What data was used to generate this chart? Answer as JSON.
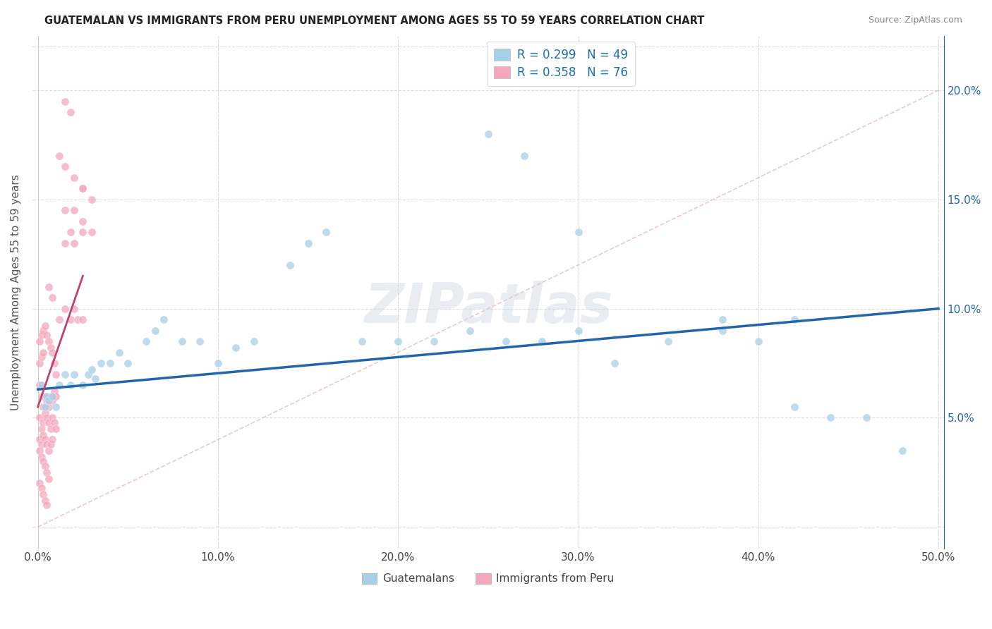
{
  "title": "GUATEMALAN VS IMMIGRANTS FROM PERU UNEMPLOYMENT AMONG AGES 55 TO 59 YEARS CORRELATION CHART",
  "source": "Source: ZipAtlas.com",
  "ylabel": "Unemployment Among Ages 55 to 59 years",
  "xlim": [
    -0.003,
    0.503
  ],
  "ylim": [
    -0.01,
    0.225
  ],
  "xticks": [
    0.0,
    0.1,
    0.2,
    0.3,
    0.4,
    0.5
  ],
  "xticklabels": [
    "0.0%",
    "10.0%",
    "20.0%",
    "30.0%",
    "40.0%",
    "50.0%"
  ],
  "yticks_right": [
    0.05,
    0.1,
    0.15,
    0.2
  ],
  "yticklabels_right": [
    "5.0%",
    "10.0%",
    "15.0%",
    "20.0%"
  ],
  "blue_color": "#a8cfe8",
  "pink_color": "#f4a7bb",
  "blue_line_color": "#2166ac",
  "pink_line_color": "#e07090",
  "diag_line_color": "#e8b0bf",
  "watermark": "ZIPatlas",
  "background_color": "#ffffff",
  "grid_color": "#dddddd",
  "legend_r1": "R = 0.299",
  "legend_n1": "N = 49",
  "legend_r2": "R = 0.358",
  "legend_n2": "N = 76",
  "legend_text_color": "#1a6eb5",
  "blue_scatter_x": [
    0.002,
    0.004,
    0.005,
    0.006,
    0.008,
    0.01,
    0.012,
    0.015,
    0.018,
    0.02,
    0.025,
    0.028,
    0.03,
    0.032,
    0.035,
    0.04,
    0.045,
    0.05,
    0.06,
    0.065,
    0.07,
    0.08,
    0.09,
    0.1,
    0.11,
    0.12,
    0.14,
    0.15,
    0.16,
    0.18,
    0.2,
    0.22,
    0.24,
    0.26,
    0.28,
    0.3,
    0.32,
    0.35,
    0.38,
    0.4,
    0.42,
    0.44,
    0.46,
    0.48,
    0.25,
    0.27,
    0.3,
    0.38,
    0.42
  ],
  "blue_scatter_y": [
    0.065,
    0.055,
    0.06,
    0.058,
    0.06,
    0.055,
    0.065,
    0.07,
    0.065,
    0.07,
    0.065,
    0.07,
    0.072,
    0.068,
    0.075,
    0.075,
    0.08,
    0.075,
    0.085,
    0.09,
    0.095,
    0.085,
    0.085,
    0.075,
    0.082,
    0.085,
    0.12,
    0.13,
    0.135,
    0.085,
    0.085,
    0.085,
    0.09,
    0.085,
    0.085,
    0.09,
    0.075,
    0.085,
    0.09,
    0.085,
    0.055,
    0.05,
    0.05,
    0.035,
    0.18,
    0.17,
    0.135,
    0.095,
    0.095
  ],
  "pink_scatter_x": [
    0.001,
    0.002,
    0.003,
    0.004,
    0.005,
    0.006,
    0.007,
    0.008,
    0.009,
    0.01,
    0.001,
    0.002,
    0.003,
    0.004,
    0.005,
    0.006,
    0.007,
    0.008,
    0.009,
    0.01,
    0.001,
    0.002,
    0.003,
    0.004,
    0.005,
    0.006,
    0.007,
    0.008,
    0.001,
    0.002,
    0.003,
    0.004,
    0.005,
    0.006,
    0.001,
    0.002,
    0.003,
    0.004,
    0.005,
    0.001,
    0.002,
    0.003,
    0.001,
    0.002,
    0.003,
    0.004,
    0.005,
    0.006,
    0.007,
    0.008,
    0.009,
    0.01,
    0.012,
    0.015,
    0.018,
    0.02,
    0.022,
    0.025,
    0.015,
    0.018,
    0.02,
    0.025,
    0.015,
    0.02,
    0.025,
    0.03,
    0.025,
    0.03,
    0.02,
    0.025,
    0.015,
    0.018,
    0.012,
    0.015,
    0.006,
    0.008
  ],
  "pink_scatter_y": [
    0.065,
    0.06,
    0.055,
    0.06,
    0.058,
    0.055,
    0.06,
    0.058,
    0.062,
    0.06,
    0.05,
    0.045,
    0.048,
    0.052,
    0.05,
    0.048,
    0.045,
    0.05,
    0.048,
    0.045,
    0.04,
    0.038,
    0.042,
    0.04,
    0.038,
    0.035,
    0.038,
    0.04,
    0.035,
    0.032,
    0.03,
    0.028,
    0.025,
    0.022,
    0.02,
    0.018,
    0.015,
    0.012,
    0.01,
    0.075,
    0.078,
    0.08,
    0.085,
    0.088,
    0.09,
    0.092,
    0.088,
    0.085,
    0.082,
    0.08,
    0.075,
    0.07,
    0.095,
    0.1,
    0.095,
    0.1,
    0.095,
    0.095,
    0.13,
    0.135,
    0.13,
    0.135,
    0.145,
    0.145,
    0.14,
    0.135,
    0.155,
    0.15,
    0.16,
    0.155,
    0.195,
    0.19,
    0.17,
    0.165,
    0.11,
    0.105
  ]
}
